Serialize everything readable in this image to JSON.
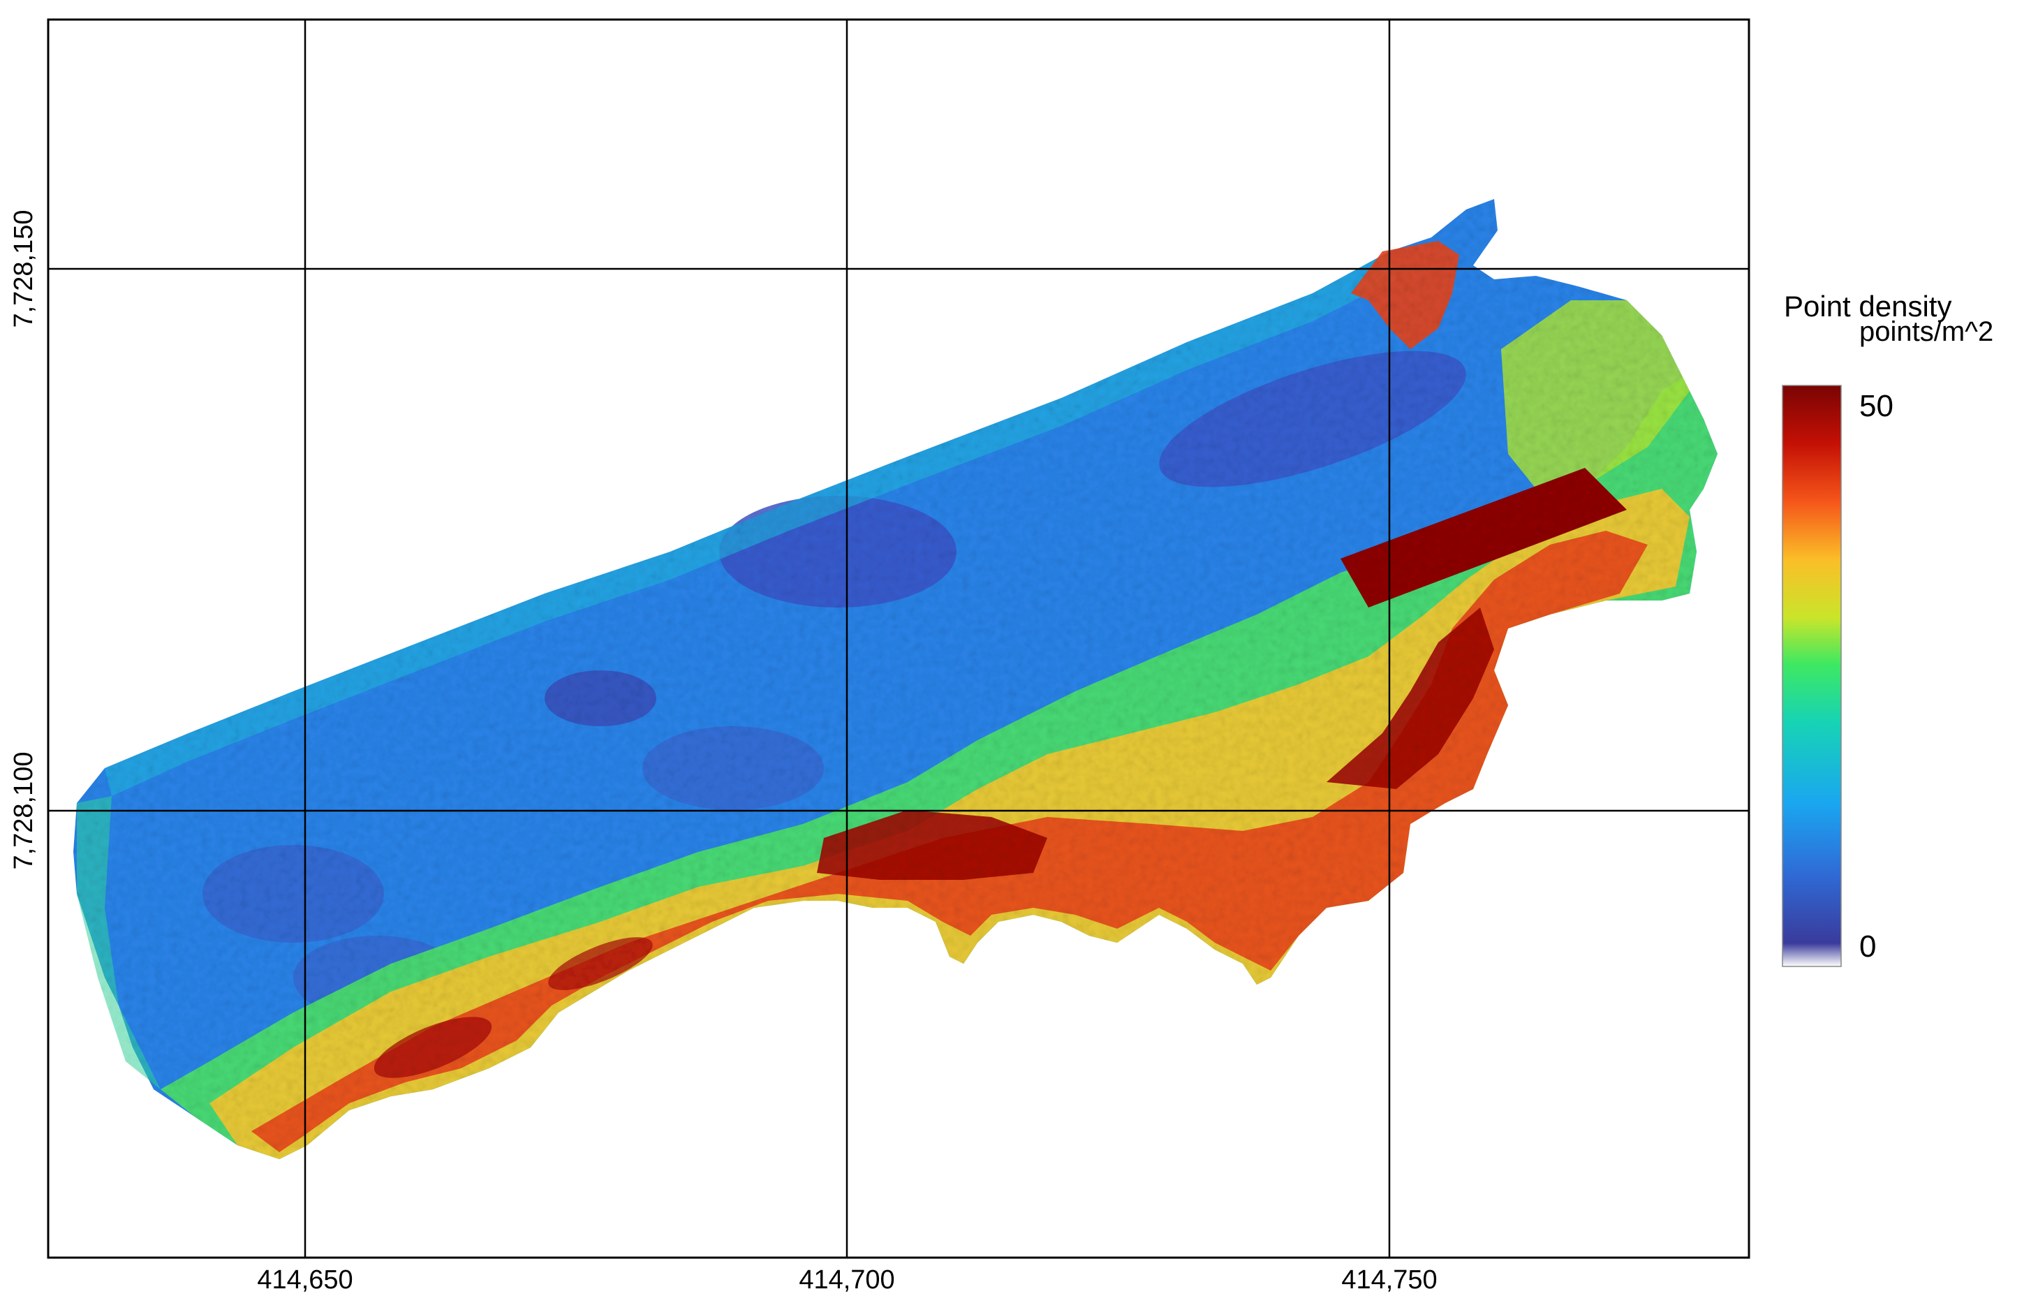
{
  "map": {
    "x_ticks": [
      "414,650",
      "414,700",
      "414,750"
    ],
    "y_ticks": [
      "7,728,150",
      "7,728,100"
    ],
    "legend": {
      "title": "Point density",
      "unit": "points/m^2",
      "max_label": "50",
      "min_label": "0",
      "colors": [
        "#FFFFFF",
        "#3A3B9C",
        "#2F6BD6",
        "#1AA6F0",
        "#17D3B5",
        "#3EE862",
        "#C9E52A",
        "#FBBE28",
        "#F5561A",
        "#C41005",
        "#7A0403"
      ]
    },
    "raster": {
      "description_value_range": [
        0,
        50
      ]
    }
  }
}
